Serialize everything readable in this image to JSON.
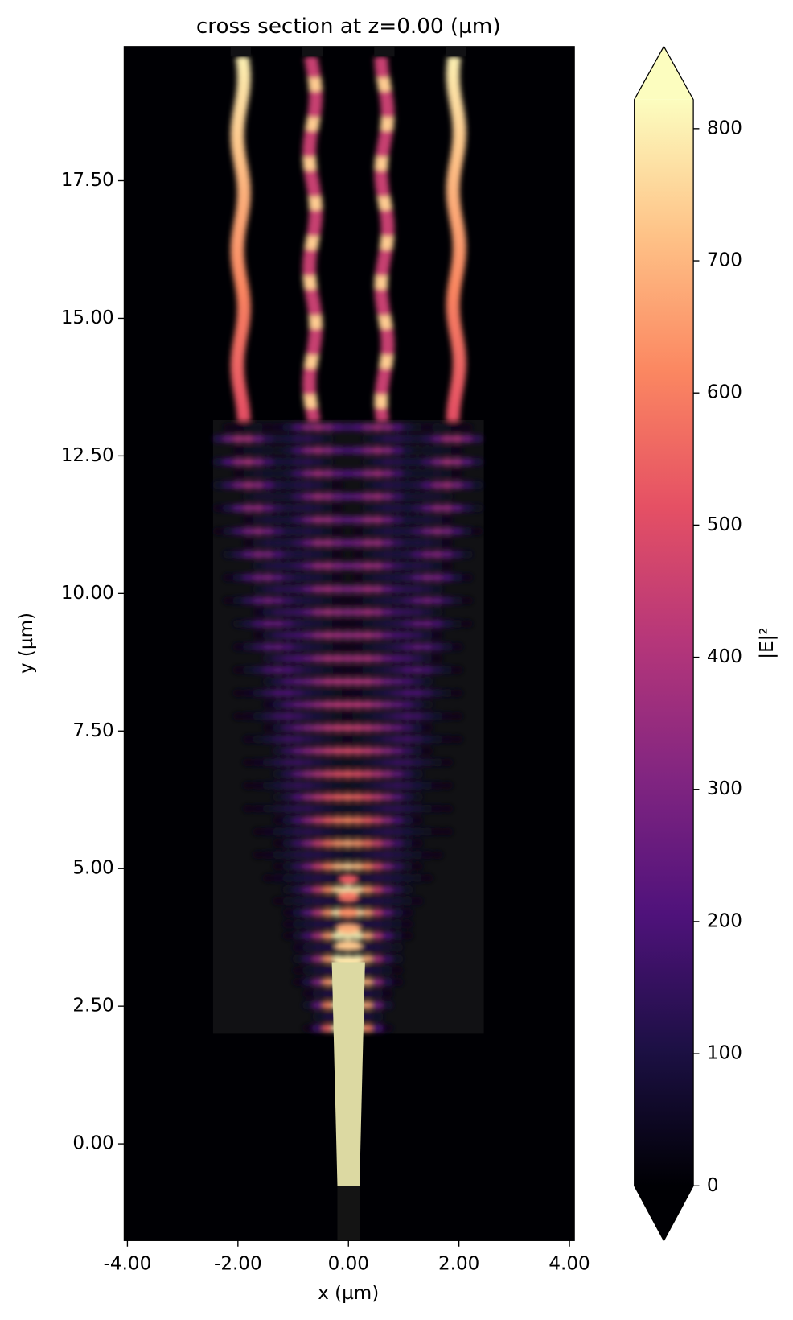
{
  "chart_data": {
    "type": "heatmap",
    "title": "cross section at z=0.00 (µm)",
    "xlabel": "x (µm)",
    "ylabel": "y (µm)",
    "xlim": [
      -4.06,
      4.09
    ],
    "ylim": [
      -1.76,
      19.94
    ],
    "xticks": [
      {
        "value": -4,
        "label": "-4.00"
      },
      {
        "value": -2,
        "label": "-2.00"
      },
      {
        "value": 0,
        "label": "0.00"
      },
      {
        "value": 2,
        "label": "2.00"
      },
      {
        "value": 4,
        "label": "4.00"
      }
    ],
    "yticks": [
      {
        "value": 0,
        "label": "0.00"
      },
      {
        "value": 2.5,
        "label": "2.50"
      },
      {
        "value": 5,
        "label": "5.00"
      },
      {
        "value": 7.5,
        "label": "7.50"
      },
      {
        "value": 10,
        "label": "10.00"
      },
      {
        "value": 12.5,
        "label": "12.50"
      },
      {
        "value": 15,
        "label": "15.00"
      },
      {
        "value": 17.5,
        "label": "17.50"
      }
    ],
    "colorbar": {
      "label": "|E|²",
      "lim": [
        0,
        822
      ],
      "ticks": [
        0,
        100,
        200,
        300,
        400,
        500,
        600,
        700,
        800
      ],
      "extend": "both",
      "colors": [
        "#000004",
        "#1c1044",
        "#4f127b",
        "#812581",
        "#b5367a",
        "#e55064",
        "#fb8761",
        "#fec287",
        "#fcfdbf"
      ]
    }
  }
}
